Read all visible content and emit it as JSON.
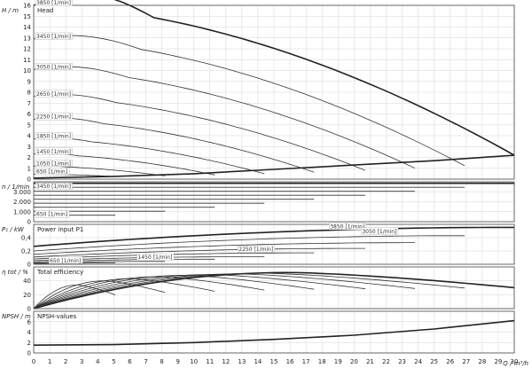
{
  "chart_data": {
    "type": "line",
    "x_axis": {
      "label": "Q / m³/h",
      "range": [
        0,
        30
      ],
      "ticks": [
        0,
        1,
        2,
        3,
        4,
        5,
        6,
        7,
        8,
        9,
        10,
        11,
        12,
        13,
        14,
        15,
        16,
        17,
        18,
        19,
        20,
        21,
        22,
        23,
        24,
        25,
        26,
        27,
        28,
        29,
        30
      ]
    },
    "panels": [
      {
        "id": "head",
        "title": "Head",
        "ylabel": "H / m",
        "ylim": [
          0,
          16
        ],
        "yticks": [
          0,
          1,
          2,
          3,
          4,
          5,
          6,
          7,
          8,
          9,
          10,
          11,
          12,
          13,
          14,
          15,
          16
        ],
        "series": [
          {
            "name": "3850 [1/min]",
            "rpm": 3850,
            "shutoff": 16.0,
            "qmax": 30.0
          },
          {
            "name": "3450 [1/min]",
            "rpm": 3450,
            "shutoff": 12.9,
            "qmax": 26.9
          },
          {
            "name": "3050 [1/min]",
            "rpm": 3050,
            "shutoff": 10.1,
            "qmax": 23.8
          },
          {
            "name": "2650 [1/min]",
            "rpm": 2650,
            "shutoff": 7.6,
            "qmax": 20.7
          },
          {
            "name": "2250 [1/min]",
            "rpm": 2250,
            "shutoff": 5.5,
            "qmax": 17.5
          },
          {
            "name": "1850 [1/min]",
            "rpm": 1850,
            "shutoff": 3.7,
            "qmax": 14.4
          },
          {
            "name": "1450 [1/min]",
            "rpm": 1450,
            "shutoff": 2.3,
            "qmax": 11.3
          },
          {
            "name": "1050 [1/min]",
            "rpm": 1050,
            "shutoff": 1.2,
            "qmax": 8.2
          },
          {
            "name": "650 [1/min]",
            "rpm": 650,
            "shutoff": 0.45,
            "qmax": 5.1
          }
        ],
        "limit_curve": {
          "x": [
            0,
            5,
            10,
            15,
            20,
            25,
            30
          ],
          "y": [
            0.1,
            0.25,
            0.5,
            0.9,
            1.3,
            1.7,
            2.2
          ]
        }
      },
      {
        "id": "speed",
        "title": "",
        "ylabel": "n / 1/min",
        "ylim": [
          0,
          4000
        ],
        "yticks": [
          0,
          1000,
          2000,
          3000
        ],
        "ytick_labels": [
          "0",
          "1.000",
          "2.000",
          "3.000"
        ],
        "series": [
          {
            "name": "3450 [1/min]",
            "rpm": 3450,
            "qmax": 26.9
          },
          {
            "name": "3050 [1/min]",
            "rpm": 3050,
            "qmax": 23.8
          },
          {
            "name": "2650 [1/min]",
            "rpm": 2650,
            "qmax": 20.7
          },
          {
            "name": "2250 [1/min]",
            "rpm": 2250,
            "qmax": 17.5
          },
          {
            "name": "1850 [1/min]",
            "rpm": 1850,
            "qmax": 14.4
          },
          {
            "name": "1450 [1/min]",
            "rpm": 1450,
            "qmax": 11.3
          },
          {
            "name": "1050 [1/min]",
            "rpm": 1050,
            "qmax": 8.2
          },
          {
            "name": "650 [1/min]",
            "rpm": 650,
            "qmax": 5.1
          }
        ]
      },
      {
        "id": "power",
        "title": "Power input P1",
        "ylabel": "P₁ / kW",
        "ylim": [
          0,
          0.6
        ],
        "yticks": [
          0,
          0.2,
          0.4
        ],
        "ytick_labels": [
          "0",
          "0,2",
          "0,4"
        ],
        "series": [
          {
            "name": "3850 [1/min]",
            "p0": 0.27,
            "pmax": 0.58,
            "qmax": 30.0
          },
          {
            "name": "3450 [1/min]",
            "p0": 0.2,
            "pmax": 0.45,
            "qmax": 26.9
          },
          {
            "name": "3050 [1/min]",
            "p0": 0.15,
            "pmax": 0.34,
            "qmax": 23.8
          },
          {
            "name": "2650 [1/min]",
            "p0": 0.11,
            "pmax": 0.25,
            "qmax": 20.7
          },
          {
            "name": "2250 [1/min]",
            "p0": 0.08,
            "pmax": 0.18,
            "qmax": 17.5
          },
          {
            "name": "1850 [1/min]",
            "p0": 0.055,
            "pmax": 0.12,
            "qmax": 14.4
          },
          {
            "name": "1450 [1/min]",
            "p0": 0.035,
            "pmax": 0.08,
            "qmax": 11.3
          },
          {
            "name": "1050 [1/min]",
            "p0": 0.02,
            "pmax": 0.045,
            "qmax": 8.2
          },
          {
            "name": "650 [1/min]",
            "p0": 0.01,
            "pmax": 0.02,
            "qmax": 5.1
          }
        ],
        "labels": [
          {
            "text": "3850 [1/min]",
            "x": 18.5,
            "y": 0.54
          },
          {
            "text": "3050 [1/min]",
            "x": 20.5,
            "y": 0.47
          },
          {
            "text": "2250 [1/min]",
            "x": 12.8,
            "y": 0.2
          },
          {
            "text": "1450 [1/min]",
            "x": 6.5,
            "y": 0.08
          },
          {
            "text": "650 [1/min]",
            "x": 1.0,
            "y": 0.03
          }
        ]
      },
      {
        "id": "efficiency",
        "title": "Total efficiency",
        "ylabel": "η tot / %",
        "ylim": [
          0,
          60
        ],
        "yticks": [
          0,
          20,
          40
        ],
        "series": [
          {
            "name": "3850 [1/min]",
            "peak": 52,
            "qbest": 16,
            "qmax": 30.0
          },
          {
            "name": "3450 [1/min]",
            "peak": 51,
            "qbest": 14.3,
            "qmax": 26.9
          },
          {
            "name": "3050 [1/min]",
            "peak": 50,
            "qbest": 12.7,
            "qmax": 23.8
          },
          {
            "name": "2650 [1/min]",
            "peak": 49,
            "qbest": 11,
            "qmax": 20.7
          },
          {
            "name": "2250 [1/min]",
            "peak": 48,
            "qbest": 9.4,
            "qmax": 17.5
          },
          {
            "name": "1850 [1/min]",
            "peak": 46,
            "qbest": 7.7,
            "qmax": 14.4
          },
          {
            "name": "1450 [1/min]",
            "peak": 43,
            "qbest": 6,
            "qmax": 11.3
          },
          {
            "name": "1050 [1/min]",
            "peak": 40,
            "qbest": 4.4,
            "qmax": 8.2
          },
          {
            "name": "650 [1/min]",
            "peak": 34,
            "qbest": 2.7,
            "qmax": 5.1
          }
        ]
      },
      {
        "id": "npsh",
        "title": "NPSH-values",
        "ylabel": "NPSH / m",
        "ylim": [
          0,
          8
        ],
        "yticks": [
          0,
          2,
          4,
          6
        ],
        "series": [
          {
            "name": "NPSH",
            "x": [
              0,
              5,
              10,
              15,
              20,
              25,
              30
            ],
            "y": [
              1.5,
              1.6,
              2.0,
              2.6,
              3.4,
              4.6,
              6.2
            ]
          }
        ]
      }
    ]
  }
}
